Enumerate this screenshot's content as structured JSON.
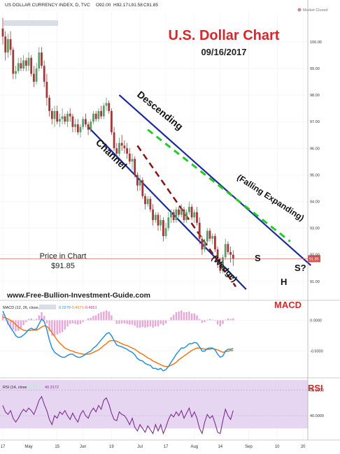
{
  "chart_data": {
    "type": "candlestick",
    "header": {
      "symbol": "US DOLLAR CURRENCY INDEX, D, TVC",
      "open": "O92.00",
      "high": "H92.17",
      "low": "L91.58",
      "close": "C91.85",
      "market_status": "Market Closed"
    },
    "title": "U.S. Dollar Chart",
    "subtitle": "09/16/2017",
    "watermark": "www.Free-Bullion-Investment-Guide.com",
    "price_label": "Price in Chart",
    "price_value": "$91.85",
    "last_price": 91.85,
    "last_price_tag": "91.85",
    "ylim": [
      90.6,
      101.1
    ],
    "y_ticks": [
      91,
      92,
      93,
      94,
      95,
      96,
      97,
      98,
      99,
      100
    ],
    "y_tick_labels": [
      "91.00",
      "92.00",
      "93.00",
      "94.00",
      "95.00",
      "96.00",
      "97.00",
      "98.00",
      "99.00",
      "100.00"
    ],
    "x_tick_labels": [
      "17",
      "May",
      "15",
      "Jun",
      "19",
      "Jul",
      "17",
      "Aug",
      "14",
      "Sep",
      "10",
      "20"
    ],
    "x_tick_bar_index": [
      0,
      10,
      21,
      31,
      42,
      53,
      63,
      74,
      84,
      95,
      106,
      116
    ],
    "candles": [
      {
        "o": 100.5,
        "h": 100.9,
        "l": 99.9,
        "c": 100.2
      },
      {
        "o": 100.2,
        "h": 100.4,
        "l": 99.3,
        "c": 99.6
      },
      {
        "o": 99.6,
        "h": 100.3,
        "l": 99.4,
        "c": 100.1
      },
      {
        "o": 100.1,
        "h": 100.4,
        "l": 99.5,
        "c": 99.7
      },
      {
        "o": 99.7,
        "h": 99.8,
        "l": 98.6,
        "c": 98.8
      },
      {
        "o": 98.8,
        "h": 99.1,
        "l": 98.6,
        "c": 98.9
      },
      {
        "o": 98.9,
        "h": 99.4,
        "l": 98.8,
        "c": 99.2
      },
      {
        "o": 99.2,
        "h": 99.4,
        "l": 98.9,
        "c": 99.0
      },
      {
        "o": 99.0,
        "h": 99.5,
        "l": 98.9,
        "c": 99.3
      },
      {
        "o": 99.3,
        "h": 99.4,
        "l": 98.9,
        "c": 99.1
      },
      {
        "o": 99.1,
        "h": 99.6,
        "l": 98.9,
        "c": 99.4
      },
      {
        "o": 99.4,
        "h": 99.5,
        "l": 98.7,
        "c": 98.8
      },
      {
        "o": 98.8,
        "h": 99.1,
        "l": 98.3,
        "c": 98.5
      },
      {
        "o": 98.5,
        "h": 99.2,
        "l": 98.4,
        "c": 99.0
      },
      {
        "o": 99.0,
        "h": 99.8,
        "l": 98.9,
        "c": 99.6
      },
      {
        "o": 99.6,
        "h": 99.8,
        "l": 99.0,
        "c": 99.1
      },
      {
        "o": 99.1,
        "h": 99.3,
        "l": 98.3,
        "c": 98.5
      },
      {
        "o": 98.5,
        "h": 98.8,
        "l": 97.6,
        "c": 97.9
      },
      {
        "o": 97.9,
        "h": 98.0,
        "l": 97.2,
        "c": 97.4
      },
      {
        "o": 97.4,
        "h": 97.5,
        "l": 96.9,
        "c": 97.1
      },
      {
        "o": 97.1,
        "h": 97.6,
        "l": 96.8,
        "c": 97.4
      },
      {
        "o": 97.4,
        "h": 97.6,
        "l": 96.9,
        "c": 97.0
      },
      {
        "o": 97.0,
        "h": 97.3,
        "l": 96.8,
        "c": 97.1
      },
      {
        "o": 97.1,
        "h": 97.5,
        "l": 96.9,
        "c": 97.2
      },
      {
        "o": 97.2,
        "h": 97.3,
        "l": 96.9,
        "c": 97.0
      },
      {
        "o": 97.0,
        "h": 97.4,
        "l": 96.8,
        "c": 97.3
      },
      {
        "o": 97.3,
        "h": 97.5,
        "l": 97.0,
        "c": 97.2
      },
      {
        "o": 97.2,
        "h": 97.3,
        "l": 96.6,
        "c": 96.8
      },
      {
        "o": 96.8,
        "h": 97.1,
        "l": 96.6,
        "c": 96.9
      },
      {
        "o": 96.9,
        "h": 97.1,
        "l": 96.5,
        "c": 96.6
      },
      {
        "o": 96.6,
        "h": 96.9,
        "l": 96.4,
        "c": 96.8
      },
      {
        "o": 96.8,
        "h": 97.2,
        "l": 96.7,
        "c": 97.1
      },
      {
        "o": 97.1,
        "h": 97.3,
        "l": 96.8,
        "c": 96.9
      },
      {
        "o": 96.9,
        "h": 97.0,
        "l": 96.5,
        "c": 96.7
      },
      {
        "o": 96.7,
        "h": 97.1,
        "l": 96.6,
        "c": 97.0
      },
      {
        "o": 97.0,
        "h": 97.4,
        "l": 96.9,
        "c": 97.3
      },
      {
        "o": 97.3,
        "h": 97.4,
        "l": 97.0,
        "c": 97.1
      },
      {
        "o": 97.1,
        "h": 97.5,
        "l": 97.0,
        "c": 97.4
      },
      {
        "o": 97.4,
        "h": 97.6,
        "l": 97.1,
        "c": 97.2
      },
      {
        "o": 97.2,
        "h": 97.7,
        "l": 97.1,
        "c": 97.6
      },
      {
        "o": 97.6,
        "h": 97.9,
        "l": 97.4,
        "c": 97.7
      },
      {
        "o": 97.7,
        "h": 97.8,
        "l": 97.3,
        "c": 97.4
      },
      {
        "o": 97.4,
        "h": 97.5,
        "l": 96.5,
        "c": 96.6
      },
      {
        "o": 96.6,
        "h": 96.8,
        "l": 95.9,
        "c": 96.0
      },
      {
        "o": 96.0,
        "h": 96.2,
        "l": 95.7,
        "c": 95.8
      },
      {
        "o": 95.8,
        "h": 96.4,
        "l": 95.7,
        "c": 96.2
      },
      {
        "o": 96.2,
        "h": 96.5,
        "l": 95.9,
        "c": 96.1
      },
      {
        "o": 96.1,
        "h": 96.3,
        "l": 95.8,
        "c": 96.0
      },
      {
        "o": 96.0,
        "h": 96.2,
        "l": 95.6,
        "c": 95.8
      },
      {
        "o": 95.8,
        "h": 96.0,
        "l": 95.4,
        "c": 95.5
      },
      {
        "o": 95.5,
        "h": 95.8,
        "l": 95.2,
        "c": 95.6
      },
      {
        "o": 95.6,
        "h": 95.7,
        "l": 94.9,
        "c": 95.0
      },
      {
        "o": 95.0,
        "h": 95.1,
        "l": 94.4,
        "c": 94.6
      },
      {
        "o": 94.6,
        "h": 95.0,
        "l": 94.4,
        "c": 94.8
      },
      {
        "o": 94.8,
        "h": 94.9,
        "l": 94.1,
        "c": 94.2
      },
      {
        "o": 94.2,
        "h": 94.3,
        "l": 93.7,
        "c": 93.9
      },
      {
        "o": 93.9,
        "h": 94.2,
        "l": 93.8,
        "c": 94.1
      },
      {
        "o": 94.1,
        "h": 94.2,
        "l": 93.6,
        "c": 93.7
      },
      {
        "o": 93.7,
        "h": 93.9,
        "l": 93.1,
        "c": 93.3
      },
      {
        "o": 93.3,
        "h": 93.6,
        "l": 93.2,
        "c": 93.5
      },
      {
        "o": 93.5,
        "h": 93.6,
        "l": 92.9,
        "c": 93.1
      },
      {
        "o": 93.1,
        "h": 93.5,
        "l": 92.9,
        "c": 93.3
      },
      {
        "o": 93.3,
        "h": 93.4,
        "l": 92.5,
        "c": 92.7
      },
      {
        "o": 92.7,
        "h": 93.2,
        "l": 92.6,
        "c": 93.0
      },
      {
        "o": 93.0,
        "h": 93.6,
        "l": 92.9,
        "c": 93.4
      },
      {
        "o": 93.4,
        "h": 93.7,
        "l": 93.2,
        "c": 93.6
      },
      {
        "o": 93.6,
        "h": 93.7,
        "l": 93.2,
        "c": 93.3
      },
      {
        "o": 93.3,
        "h": 93.8,
        "l": 93.2,
        "c": 93.7
      },
      {
        "o": 93.7,
        "h": 93.8,
        "l": 93.4,
        "c": 93.5
      },
      {
        "o": 93.5,
        "h": 93.9,
        "l": 93.4,
        "c": 93.7
      },
      {
        "o": 93.7,
        "h": 93.8,
        "l": 93.2,
        "c": 93.3
      },
      {
        "o": 93.3,
        "h": 93.7,
        "l": 93.2,
        "c": 93.6
      },
      {
        "o": 93.6,
        "h": 94.0,
        "l": 93.5,
        "c": 93.8
      },
      {
        "o": 93.8,
        "h": 93.9,
        "l": 93.3,
        "c": 93.4
      },
      {
        "o": 93.4,
        "h": 93.7,
        "l": 93.2,
        "c": 93.6
      },
      {
        "o": 93.6,
        "h": 93.8,
        "l": 93.1,
        "c": 93.2
      },
      {
        "o": 93.2,
        "h": 93.4,
        "l": 92.4,
        "c": 92.6
      },
      {
        "o": 92.6,
        "h": 92.7,
        "l": 92.0,
        "c": 92.2
      },
      {
        "o": 92.2,
        "h": 92.6,
        "l": 92.1,
        "c": 92.5
      },
      {
        "o": 92.5,
        "h": 93.0,
        "l": 92.4,
        "c": 92.9
      },
      {
        "o": 92.9,
        "h": 93.0,
        "l": 92.5,
        "c": 92.6
      },
      {
        "o": 92.6,
        "h": 92.8,
        "l": 92.4,
        "c": 92.7
      },
      {
        "o": 92.7,
        "h": 92.8,
        "l": 92.1,
        "c": 92.2
      },
      {
        "o": 92.2,
        "h": 92.3,
        "l": 91.5,
        "c": 91.7
      },
      {
        "o": 91.7,
        "h": 91.9,
        "l": 91.3,
        "c": 91.4
      },
      {
        "o": 91.4,
        "h": 92.0,
        "l": 91.3,
        "c": 91.9
      },
      {
        "o": 91.9,
        "h": 92.6,
        "l": 91.8,
        "c": 92.4
      },
      {
        "o": 92.4,
        "h": 92.5,
        "l": 92.0,
        "c": 92.1
      },
      {
        "o": 92.1,
        "h": 92.3,
        "l": 91.7,
        "c": 92.0
      },
      {
        "o": 92.0,
        "h": 92.17,
        "l": 91.58,
        "c": 91.85
      }
    ],
    "channel_upper": [
      [
        45,
        98.0
      ],
      [
        119,
        91.6
      ]
    ],
    "channel_lower": [
      [
        33,
        96.8
      ],
      [
        94,
        90.7
      ]
    ],
    "wedge_line": [
      [
        52,
        96.1
      ],
      [
        90,
        90.8
      ]
    ],
    "falling_expanding": [
      [
        56,
        96.7
      ],
      [
        111,
        92.5
      ]
    ],
    "annotations": [
      "Descending",
      "Channel",
      "(Falling Expanding)",
      "(Wedge)",
      "S",
      "H",
      "S?"
    ],
    "macd": {
      "label": "MACD (12, 26, close, 9)",
      "v1": "0.0279",
      "v2": "-0.4571",
      "v3": "-0.4851",
      "tag": "MACD",
      "ylim": [
        -0.9,
        0.3
      ],
      "tick_labels": [
        "0.0000",
        "-0.5000"
      ],
      "tick_values": [
        0,
        -0.5
      ],
      "macd_line": [
        0.15,
        0.05,
        -0.05,
        -0.12,
        -0.18,
        -0.25,
        -0.28,
        -0.27,
        -0.24,
        -0.2,
        -0.15,
        -0.13,
        -0.15,
        -0.14,
        -0.06,
        0.02,
        -0.02,
        -0.15,
        -0.32,
        -0.45,
        -0.52,
        -0.55,
        -0.58,
        -0.6,
        -0.6,
        -0.57,
        -0.55,
        -0.55,
        -0.58,
        -0.6,
        -0.6,
        -0.58,
        -0.55,
        -0.52,
        -0.5,
        -0.45,
        -0.42,
        -0.37,
        -0.32,
        -0.27,
        -0.22,
        -0.2,
        -0.25,
        -0.33,
        -0.4,
        -0.42,
        -0.43,
        -0.45,
        -0.47,
        -0.5,
        -0.52,
        -0.56,
        -0.62,
        -0.65,
        -0.66,
        -0.7,
        -0.72,
        -0.73,
        -0.78,
        -0.78,
        -0.8,
        -0.78,
        -0.82,
        -0.8,
        -0.75,
        -0.68,
        -0.62,
        -0.55,
        -0.5,
        -0.45,
        -0.45,
        -0.42,
        -0.38,
        -0.38,
        -0.36,
        -0.37,
        -0.43,
        -0.5,
        -0.5,
        -0.46,
        -0.45,
        -0.45,
        -0.48,
        -0.55,
        -0.6,
        -0.58,
        -0.5,
        -0.47,
        -0.47,
        -0.46
      ],
      "signal_line": [
        0.05,
        0.04,
        0.02,
        0.0,
        -0.03,
        -0.07,
        -0.11,
        -0.14,
        -0.16,
        -0.17,
        -0.17,
        -0.16,
        -0.16,
        -0.16,
        -0.14,
        -0.11,
        -0.09,
        -0.1,
        -0.14,
        -0.2,
        -0.26,
        -0.32,
        -0.37,
        -0.41,
        -0.45,
        -0.47,
        -0.49,
        -0.5,
        -0.52,
        -0.53,
        -0.54,
        -0.55,
        -0.55,
        -0.55,
        -0.54,
        -0.52,
        -0.5,
        -0.48,
        -0.45,
        -0.41,
        -0.38,
        -0.34,
        -0.33,
        -0.33,
        -0.34,
        -0.36,
        -0.38,
        -0.4,
        -0.41,
        -0.43,
        -0.45,
        -0.47,
        -0.5,
        -0.53,
        -0.55,
        -0.58,
        -0.61,
        -0.63,
        -0.66,
        -0.68,
        -0.7,
        -0.72,
        -0.74,
        -0.75,
        -0.75,
        -0.73,
        -0.71,
        -0.68,
        -0.64,
        -0.61,
        -0.58,
        -0.55,
        -0.52,
        -0.49,
        -0.47,
        -0.45,
        -0.45,
        -0.46,
        -0.47,
        -0.47,
        -0.47,
        -0.46,
        -0.47,
        -0.48,
        -0.5,
        -0.52,
        -0.51,
        -0.5,
        -0.49,
        -0.49
      ]
    },
    "rsi": {
      "label": "RSI (14, close)",
      "value": "40.3172",
      "tag": "RSI",
      "ylim": [
        22,
        68
      ],
      "tick_labels": [
        "60.0000",
        "40.0000"
      ],
      "tick_values": [
        60,
        40
      ],
      "band": [
        30,
        70
      ],
      "values": [
        48,
        43,
        41,
        44,
        38,
        35,
        38,
        42,
        45,
        43,
        46,
        44,
        41,
        46,
        52,
        55,
        49,
        44,
        37,
        33,
        40,
        38,
        43,
        41,
        44,
        40,
        37,
        42,
        38,
        35,
        41,
        44,
        40,
        38,
        43,
        46,
        43,
        48,
        45,
        52,
        54,
        49,
        42,
        37,
        36,
        43,
        41,
        40,
        37,
        33,
        38,
        31,
        28,
        33,
        30,
        27,
        32,
        29,
        26,
        33,
        28,
        33,
        26,
        31,
        37,
        41,
        39,
        43,
        40,
        44,
        38,
        42,
        46,
        39,
        43,
        38,
        30,
        26,
        35,
        41,
        38,
        40,
        34,
        27,
        26,
        36,
        45,
        40,
        37,
        44
      ]
    }
  }
}
